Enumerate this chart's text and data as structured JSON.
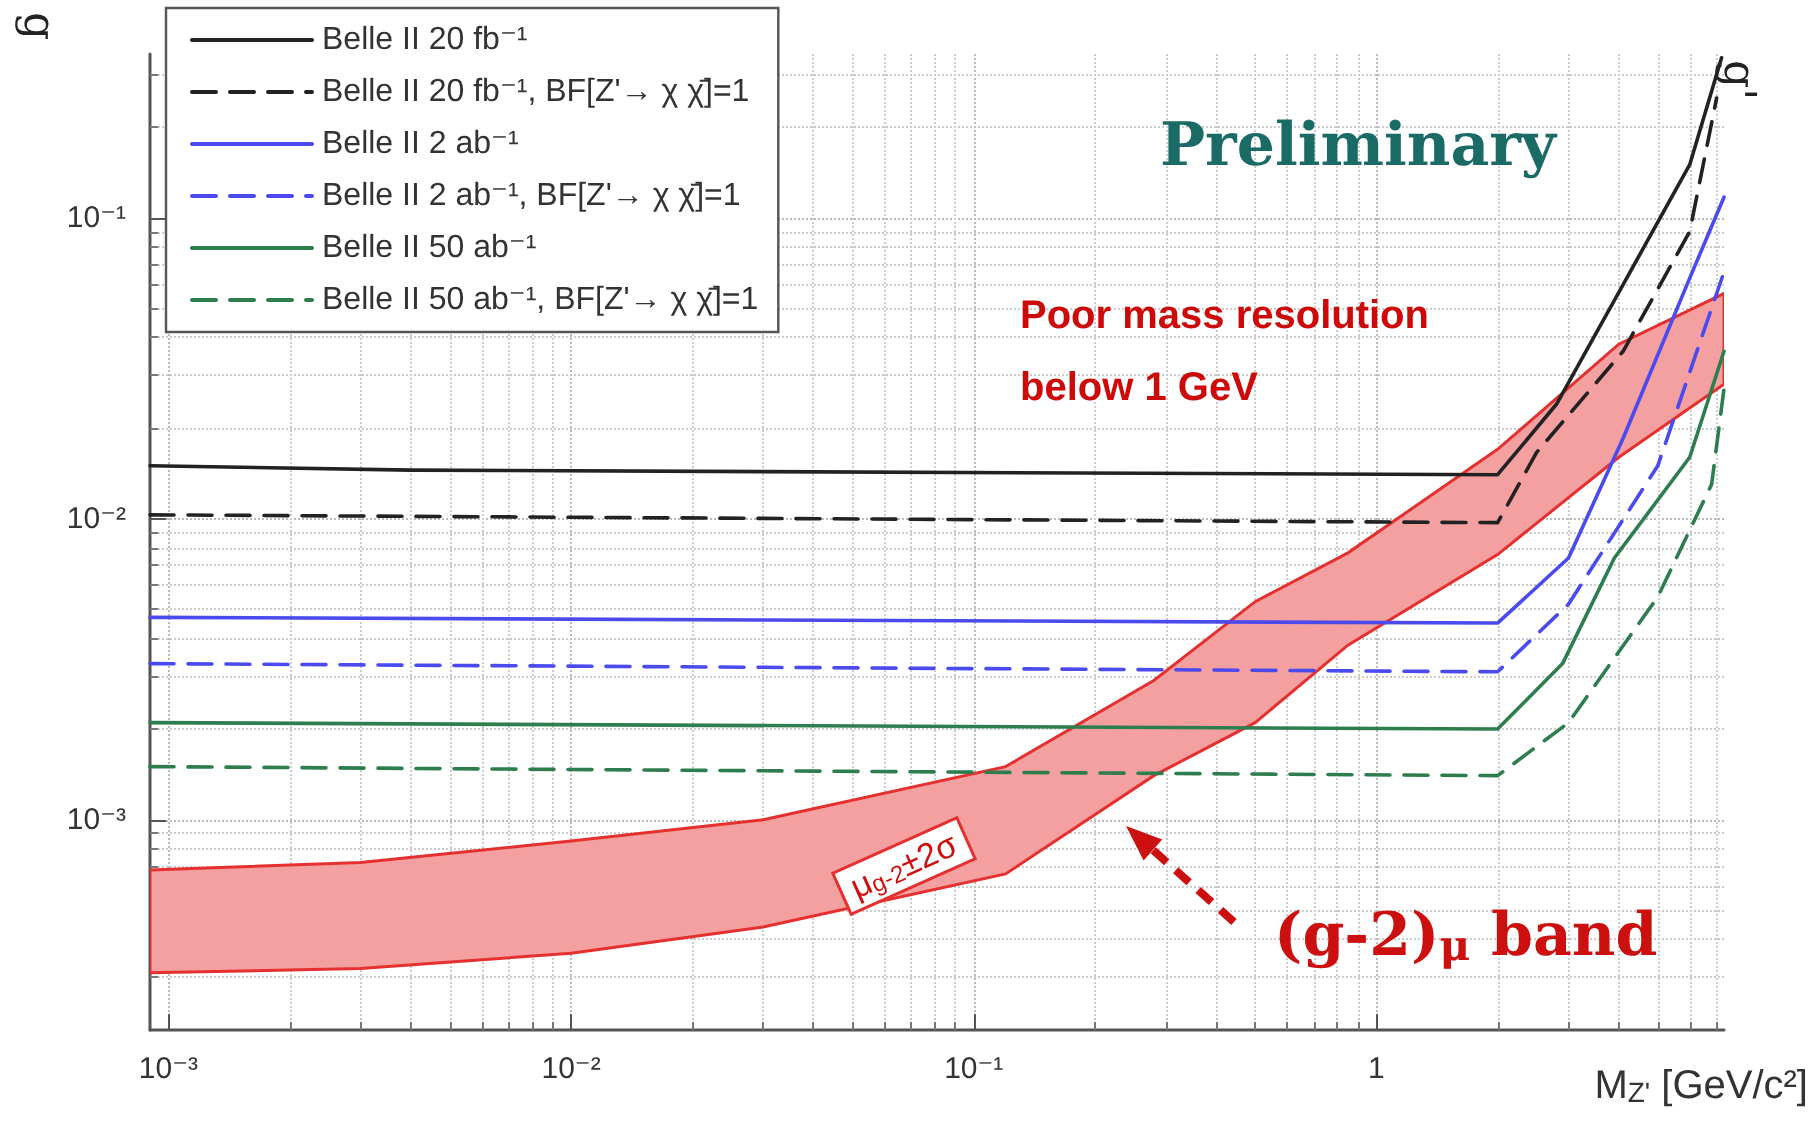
{
  "chart_data": {
    "type": "line",
    "xlabel": "M$_{Z'}$ [GeV/c²]",
    "ylabel": "g",
    "xlim": [
      0.0009,
      7.3
    ],
    "ylim": [
      0.0002,
      0.35
    ],
    "log": "xy",
    "grid": true,
    "legend": "top left",
    "marker": "none",
    "xticks": [
      {
        "value": 0.001,
        "label": "10⁻³"
      },
      {
        "value": 0.01,
        "label": "10⁻²"
      },
      {
        "value": 0.1,
        "label": "10⁻¹"
      },
      1
    ],
    "yticks": [
      {
        "value": 0.001,
        "label": "10⁻³"
      },
      {
        "value": 0.01,
        "label": "10⁻²"
      },
      {
        "value": 0.1,
        "label": "10⁻¹"
      }
    ],
    "series": [
      {
        "type": "area",
        "color": "#f4a0a0",
        "x": [
          0.0009,
          0.003,
          0.01,
          0.03,
          0.12,
          0.28,
          0.5,
          0.85,
          2,
          4,
          7.3
        ],
        "values": [
          null,
          null,
          null,
          null,
          null,
          null,
          null,
          null,
          null,
          null,
          null
        ],
        "upper": [
          0.00068,
          0.00072,
          0.00085,
          0.001,
          0.0015,
          0.0029,
          0.0053,
          0.0077,
          0.017,
          0.038,
          0.056
        ],
        "lower": [
          0.00031,
          0.00032,
          0.00036,
          0.00044,
          0.00066,
          0.0014,
          0.0021,
          0.0038,
          0.0076,
          0.016,
          0.028
        ]
      },
      {
        "name": "Belle II 20 fb⁻¹",
        "color": "#222222",
        "line_style": "solid",
        "x": [
          0.0009,
          0.004,
          2,
          2.8,
          4.1,
          6,
          7.2
        ],
        "values": [
          0.015,
          0.0145,
          0.014,
          0.024,
          0.06,
          0.15,
          0.34
        ]
      },
      {
        "name": "Belle II 20 fb⁻¹, BF[Z'→ χ χ̄]=1",
        "color": "#222222",
        "line_style": "dashed",
        "x": [
          0.0009,
          2,
          2.5,
          4.1,
          6,
          7
        ],
        "values": [
          0.0103,
          0.0097,
          0.0166,
          0.036,
          0.09,
          0.25
        ]
      },
      {
        "name": "Belle II 2 ab⁻¹",
        "color": "#4a4aee",
        "line_style": "solid",
        "x": [
          0.0009,
          2,
          3,
          4.1,
          6,
          7.3
        ],
        "values": [
          0.0047,
          0.0045,
          0.0074,
          0.0185,
          0.063,
          0.117
        ]
      },
      {
        "name": "Belle II 2 ab⁻¹, BF[Z'→ χ χ̄]=1",
        "color": "#4a4aee",
        "line_style": "dashed",
        "x": [
          0.0009,
          2,
          3,
          5,
          7.3
        ],
        "values": [
          0.0033,
          0.0031,
          0.0052,
          0.015,
          0.066
        ]
      },
      {
        "name": "Belle II 50 ab⁻¹",
        "color": "#2e7d4f",
        "line_style": "solid",
        "x": [
          0.0009,
          2,
          2.9,
          3.9,
          6,
          7.3
        ],
        "values": [
          0.0021,
          0.002,
          0.0033,
          0.0074,
          0.016,
          0.036
        ]
      },
      {
        "name": "Belle II 50 ab⁻¹, BF[Z'→ χ χ̄]=1",
        "color": "#2e7d4f",
        "line_style": "dashed",
        "x": [
          0.0009,
          2,
          3,
          5,
          6.8,
          7.3
        ],
        "values": [
          0.0015,
          0.0014,
          0.0021,
          0.0055,
          0.013,
          0.027
        ]
      }
    ],
    "annotations": [
      "Preliminary",
      "Poor mass resolution below 1 GeV",
      "(g-2)$_{μ}$ band",
      "μ$_{g-2}$±2σ",
      "g'"
    ]
  }
}
